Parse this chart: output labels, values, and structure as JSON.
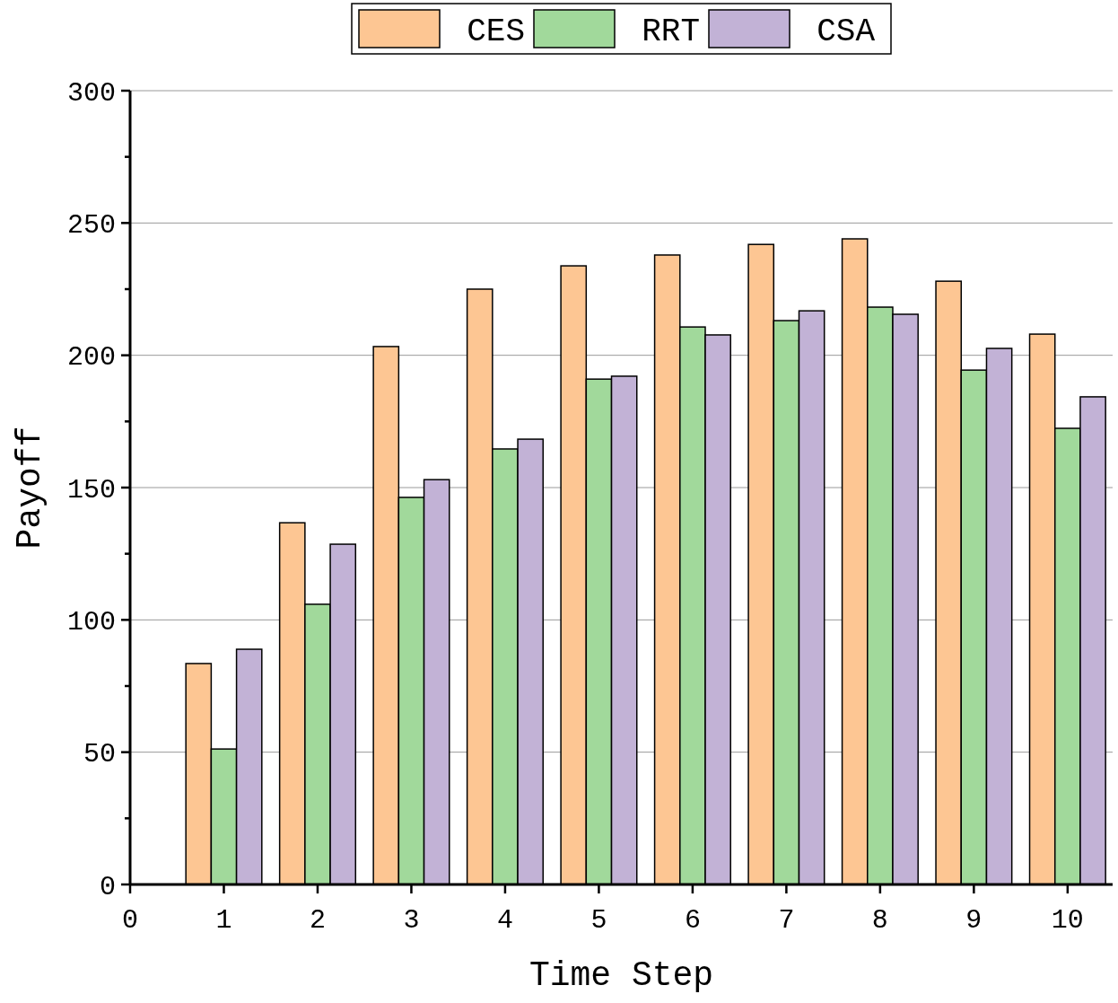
{
  "chart_data": {
    "type": "bar",
    "xlabel": "Time Step",
    "ylabel": "Payoff",
    "x": [
      1,
      2,
      3,
      4,
      5,
      6,
      7,
      8,
      9,
      10
    ],
    "xlim": [
      0,
      10.48
    ],
    "xticks": [
      0,
      1,
      2,
      3,
      4,
      5,
      6,
      7,
      8,
      9,
      10
    ],
    "ylim": [
      0,
      300
    ],
    "yticks": [
      0,
      50,
      100,
      150,
      200,
      250,
      300
    ],
    "grid": "y",
    "legend": "top",
    "series": [
      {
        "name": "CES",
        "color": "#fdc693",
        "values": [
          83.5,
          136.7,
          203.3,
          225,
          233.8,
          237.9,
          241.9,
          244,
          228,
          208
        ]
      },
      {
        "name": "RRT",
        "color": "#a1d99b",
        "values": [
          51.2,
          105.9,
          146.3,
          164.6,
          191,
          210.7,
          213.1,
          218.2,
          194.4,
          172.4
        ]
      },
      {
        "name": "CSA",
        "color": "#c2b2d6",
        "values": [
          88.9,
          128.6,
          153,
          168.3,
          192.1,
          207.7,
          216.8,
          215.5,
          202.6,
          184.3
        ]
      }
    ]
  }
}
